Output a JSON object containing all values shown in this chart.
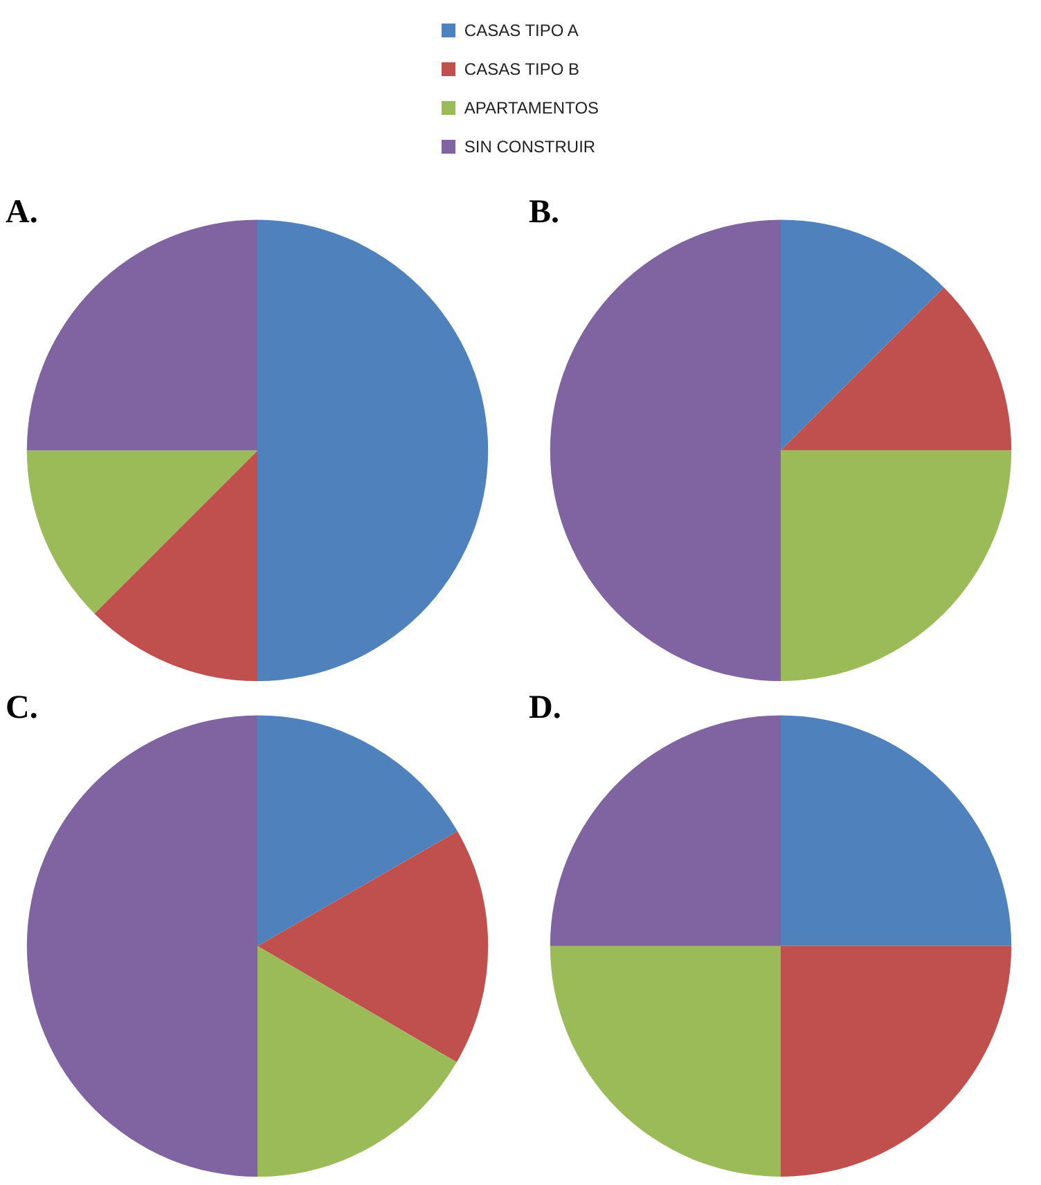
{
  "chart_data": [
    {
      "type": "pie",
      "title": "A.",
      "legend": "top",
      "categories": [
        "CASAS TIPO A",
        "CASAS TIPO B",
        "APARTAMENTOS",
        "SIN CONSTRUIR"
      ],
      "values": [
        50,
        12.5,
        12.5,
        25
      ],
      "colors": [
        "#4f81bd",
        "#c0504d",
        "#9bbb59",
        "#8064a2"
      ]
    },
    {
      "type": "pie",
      "title": "B.",
      "categories": [
        null,
        null,
        null,
        null
      ],
      "values": [
        12.5,
        12.5,
        25,
        50
      ],
      "colors": [
        "#4f81bd",
        "#c0504d",
        "#9bbb59",
        "#8064a2"
      ]
    },
    {
      "type": "pie",
      "title": "C.",
      "categories": [
        null,
        null,
        null,
        null
      ],
      "values": [
        16.7,
        16.7,
        16.6,
        50
      ],
      "colors": [
        "#4f81bd",
        "#c0504d",
        "#9bbb59",
        "#8064a2"
      ]
    },
    {
      "type": "pie",
      "title": "D.",
      "categories": [
        null,
        null,
        null,
        null
      ],
      "values": [
        25,
        25,
        25,
        25
      ],
      "colors": [
        "#4f81bd",
        "#c0504d",
        "#9bbb59",
        "#8064a2"
      ]
    }
  ]
}
